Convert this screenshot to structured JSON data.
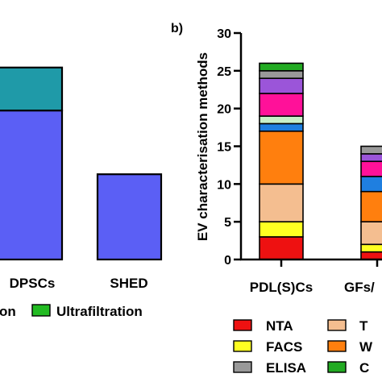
{
  "chart_data": [
    {
      "type": "bar",
      "stacked": true,
      "categories": [
        "DPSCs",
        "SHED"
      ],
      "series": [
        {
          "name": "",
          "color": "#5b5ff5",
          "values": [
            21.5,
            12.3
          ]
        },
        {
          "name": "",
          "color": "#1f9aa8",
          "values": [
            6.2,
            0
          ]
        }
      ],
      "legend": {
        "items": [
          {
            "label": "on",
            "color": "#5b5ff5"
          },
          {
            "label": "Ultrafiltration",
            "color": "#22bb22"
          }
        ]
      }
    },
    {
      "type": "bar",
      "stacked": true,
      "panel_label": "b)",
      "ylabel": "EV characterisation methods",
      "ylim": [
        0,
        30
      ],
      "yticks": [
        "0",
        "5",
        "10",
        "15",
        "20",
        "25",
        "30"
      ],
      "categories": [
        "PDL(S)Cs",
        "GFs/"
      ],
      "series": [
        {
          "name": "NTA",
          "color": "#ee1111",
          "values": [
            3,
            1
          ]
        },
        {
          "name": "FACS",
          "color": "#ffff22",
          "values": [
            2,
            1
          ]
        },
        {
          "name": "",
          "color": "#f4be90",
          "values": [
            5,
            3
          ]
        },
        {
          "name": "",
          "color": "#ff7f0e",
          "values": [
            7,
            4
          ]
        },
        {
          "name": "",
          "color": "#1f7fe0",
          "values": [
            1,
            2
          ]
        },
        {
          "name": "",
          "color": "#c8f0c8",
          "values": [
            1,
            0
          ]
        },
        {
          "name": "",
          "color": "#ff1199",
          "values": [
            3,
            2
          ]
        },
        {
          "name": "",
          "color": "#9b55d9",
          "values": [
            2,
            1
          ]
        },
        {
          "name": "ELISA",
          "color": "#999999",
          "values": [
            1,
            1
          ]
        },
        {
          "name": "",
          "color": "#22aa22",
          "values": [
            1,
            0
          ]
        }
      ],
      "legend": {
        "items": [
          {
            "label": "NTA",
            "color": "#ee1111"
          },
          {
            "label": "T",
            "color": "#f4be90"
          },
          {
            "label": "FACS",
            "color": "#ffff22"
          },
          {
            "label": "W",
            "color": "#ff7f0e"
          },
          {
            "label": "ELISA",
            "color": "#999999"
          },
          {
            "label": "C",
            "color": "#22aa22"
          }
        ]
      }
    }
  ]
}
